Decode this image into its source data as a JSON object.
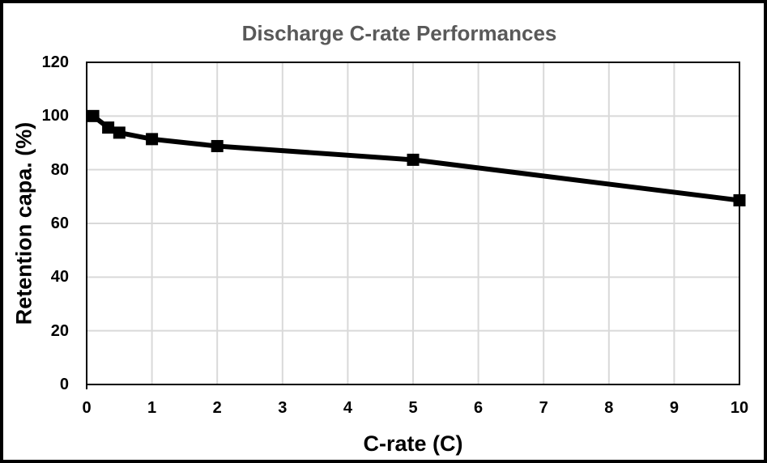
{
  "window": {
    "background": "#ffffff",
    "frame_border_color": "#000000"
  },
  "chart_data": {
    "type": "line",
    "title": "Discharge C-rate Performances",
    "xlabel": "C-rate (C)",
    "ylabel": "Retention capa. (%)",
    "xlim": [
      0,
      10
    ],
    "ylim": [
      0,
      120
    ],
    "xticks": [
      0,
      1,
      2,
      3,
      4,
      5,
      6,
      7,
      8,
      9,
      10
    ],
    "yticks": [
      0,
      20,
      40,
      60,
      80,
      100,
      120
    ],
    "grid": true,
    "legend": false,
    "series": [
      {
        "name": "Retention capacity",
        "marker": "square",
        "x": [
          0.1,
          0.33,
          0.5,
          1,
          2,
          5,
          10
        ],
        "y": [
          100,
          95.7,
          93.8,
          91.4,
          88.8,
          83.7,
          68.6
        ]
      }
    ],
    "colors": {
      "line": "#000000",
      "marker": "#000000",
      "grid": "#d9d9d9",
      "axis_border": "#000000",
      "title": "#595959",
      "tick_label": "#000000"
    }
  }
}
